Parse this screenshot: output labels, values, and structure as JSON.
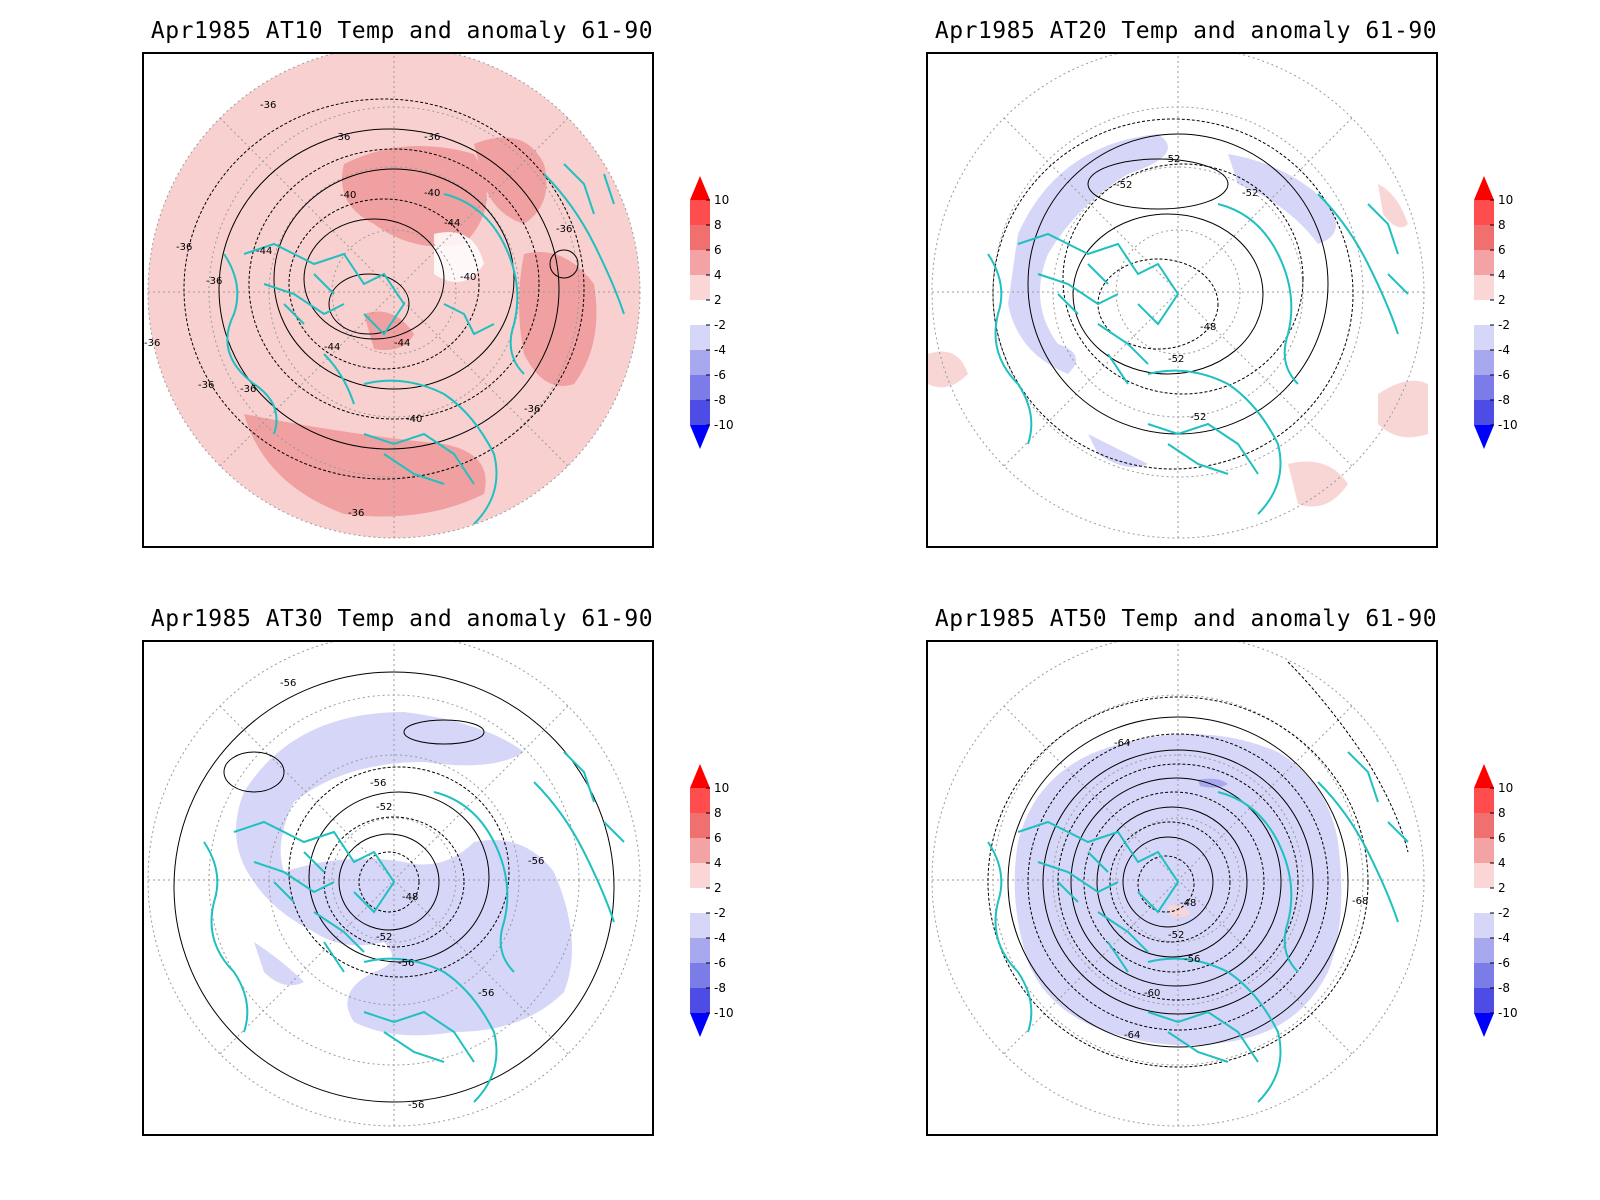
{
  "panels": [
    {
      "id": "at10",
      "title": "Apr1985 AT10 Temp and anomaly 61-90",
      "anomaly_regions": [
        {
          "bin": "2..4",
          "color": "#f9d0d0",
          "desc": "disc-wide"
        },
        {
          "bin": "4..6",
          "color": "#f0a0a0",
          "desc": "arctic, europe, n-africa, siberia"
        }
      ],
      "contour_labels": [
        "-36",
        "-36",
        "-36",
        "-36",
        "-36",
        "-36",
        "-36",
        "-36",
        "-36",
        "-36",
        "-36",
        "-40",
        "-40",
        "-40",
        "-40",
        "-44",
        "-44",
        "-44",
        "-44"
      ]
    },
    {
      "id": "at20",
      "title": "Apr1985 AT20 Temp and anomaly 61-90",
      "anomaly_regions": [
        {
          "bin": "-4..-2",
          "color": "#d6d6f8",
          "desc": "pacific, canada, asia"
        },
        {
          "bin": "2..4",
          "color": "#f9d6d6",
          "desc": "small patches"
        }
      ],
      "contour_labels": [
        "-52",
        "-52",
        "-52",
        "-48",
        "-52",
        "-52"
      ]
    },
    {
      "id": "at30",
      "title": "Apr1985 AT30 Temp and anomaly 61-90",
      "anomaly_regions": [
        {
          "bin": "-4..-2",
          "color": "#d6d6f8",
          "desc": "broad ring"
        }
      ],
      "contour_labels": [
        "-56",
        "-56",
        "-52",
        "-56",
        "-48",
        "-52",
        "-56",
        "-56",
        "-56"
      ]
    },
    {
      "id": "at50",
      "title": "Apr1985 AT50 Temp and anomaly 61-90",
      "anomaly_regions": [
        {
          "bin": "-4..-2",
          "color": "#d6d6f8",
          "desc": "broad disc"
        },
        {
          "bin": "-6..-4",
          "color": "#a8a8ee",
          "desc": "small patch"
        }
      ],
      "contour_labels": [
        "-64",
        "-68",
        "-48",
        "-52",
        "-56",
        "-60",
        "-64"
      ]
    }
  ],
  "colorbar": {
    "labels": [
      "10",
      "8",
      "6",
      "4",
      "2",
      "-2",
      "-4",
      "-6",
      "-8",
      "-10"
    ],
    "colors": [
      "#ff1a1a",
      "#ff4d4d",
      "#f07070",
      "#f3a3a3",
      "#fad6d6",
      "#ffffff",
      "#d6d6f8",
      "#a8a8ee",
      "#7c7ce8",
      "#4d4de6",
      "#1a1aff"
    ],
    "max_arrow_color": "#ff0000",
    "min_arrow_color": "#0000ff"
  },
  "colors": {
    "coastline": "#20c0c0",
    "contour": "#000000",
    "grid": "#9a9a9a"
  }
}
